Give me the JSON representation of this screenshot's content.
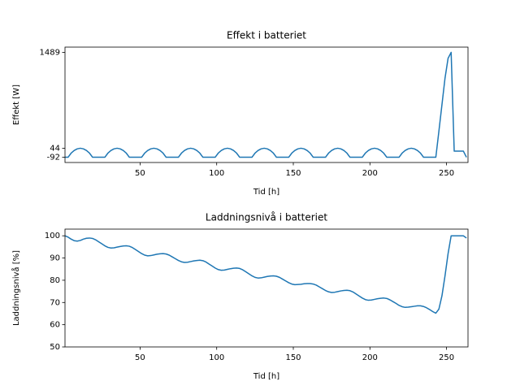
{
  "chart_data": [
    {
      "type": "line",
      "title": "Effekt i batteriet",
      "xlabel": "Tid [h]",
      "ylabel": "Effekt [W]",
      "xlim": [
        1,
        264
      ],
      "xticks": [
        50,
        100,
        150,
        200,
        250
      ],
      "ylim": [
        -171,
        1568
      ],
      "yticks": [
        -92,
        44,
        1489
      ],
      "grid": false,
      "x": [
        1,
        3,
        5,
        7,
        9,
        11,
        13,
        15,
        17,
        19,
        21,
        23,
        25,
        27,
        29,
        31,
        33,
        35,
        37,
        39,
        41,
        43,
        45,
        47,
        49,
        51,
        53,
        55,
        57,
        59,
        61,
        63,
        65,
        67,
        69,
        71,
        73,
        75,
        77,
        79,
        81,
        83,
        85,
        87,
        89,
        91,
        93,
        95,
        97,
        99,
        101,
        103,
        105,
        107,
        109,
        111,
        113,
        115,
        117,
        119,
        121,
        123,
        125,
        127,
        129,
        131,
        133,
        135,
        137,
        139,
        141,
        143,
        145,
        147,
        149,
        151,
        153,
        155,
        157,
        159,
        161,
        163,
        165,
        167,
        169,
        171,
        173,
        175,
        177,
        179,
        181,
        183,
        185,
        187,
        189,
        191,
        193,
        195,
        197,
        199,
        201,
        203,
        205,
        207,
        209,
        211,
        213,
        215,
        217,
        219,
        221,
        223,
        225,
        227,
        229,
        231,
        233,
        235,
        237,
        239,
        241,
        243,
        245,
        247,
        249,
        251,
        253,
        255,
        257,
        259,
        261,
        263
      ],
      "series": [
        {
          "name": "Effekt",
          "color": "#1f77b4",
          "values": [
            -92,
            -92,
            -30,
            10,
            35,
            44,
            35,
            10,
            -30,
            -92,
            -92,
            -92,
            -92,
            -92,
            -30,
            10,
            35,
            44,
            35,
            10,
            -30,
            -92,
            -92,
            -92,
            -92,
            -92,
            -30,
            10,
            35,
            44,
            35,
            10,
            -30,
            -92,
            -92,
            -92,
            -92,
            -92,
            -30,
            10,
            35,
            44,
            35,
            10,
            -30,
            -92,
            -92,
            -92,
            -92,
            -92,
            -30,
            10,
            35,
            44,
            35,
            10,
            -30,
            -92,
            -92,
            -92,
            -92,
            -92,
            -30,
            10,
            35,
            44,
            35,
            10,
            -30,
            -92,
            -92,
            -92,
            -92,
            -92,
            -30,
            10,
            35,
            44,
            35,
            10,
            -30,
            -92,
            -92,
            -92,
            -92,
            -92,
            -30,
            10,
            35,
            44,
            35,
            10,
            -30,
            -92,
            -92,
            -92,
            -92,
            -92,
            -30,
            10,
            35,
            44,
            35,
            10,
            -30,
            -92,
            -92,
            -92,
            -92,
            -92,
            -30,
            10,
            35,
            44,
            35,
            10,
            -30,
            -92,
            -92,
            -92,
            -92,
            -92,
            300,
            700,
            1100,
            1400,
            1489,
            0,
            0,
            0,
            0,
            -92
          ]
        }
      ]
    },
    {
      "type": "line",
      "title": "Laddningsnivå i batteriet",
      "xlabel": "Tid [h]",
      "ylabel": "Laddningsnivå [%]",
      "xlim": [
        1,
        264
      ],
      "xticks": [
        50,
        100,
        150,
        200,
        250
      ],
      "ylim": [
        50,
        103
      ],
      "yticks": [
        50,
        60,
        70,
        80,
        90,
        100
      ],
      "grid": false,
      "x": [
        1,
        3,
        5,
        7,
        9,
        11,
        13,
        15,
        17,
        19,
        21,
        23,
        25,
        27,
        29,
        31,
        33,
        35,
        37,
        39,
        41,
        43,
        45,
        47,
        49,
        51,
        53,
        55,
        57,
        59,
        61,
        63,
        65,
        67,
        69,
        71,
        73,
        75,
        77,
        79,
        81,
        83,
        85,
        87,
        89,
        91,
        93,
        95,
        97,
        99,
        101,
        103,
        105,
        107,
        109,
        111,
        113,
        115,
        117,
        119,
        121,
        123,
        125,
        127,
        129,
        131,
        133,
        135,
        137,
        139,
        141,
        143,
        145,
        147,
        149,
        151,
        153,
        155,
        157,
        159,
        161,
        163,
        165,
        167,
        169,
        171,
        173,
        175,
        177,
        179,
        181,
        183,
        185,
        187,
        189,
        191,
        193,
        195,
        197,
        199,
        201,
        203,
        205,
        207,
        209,
        211,
        213,
        215,
        217,
        219,
        221,
        223,
        225,
        227,
        229,
        231,
        233,
        235,
        237,
        239,
        241,
        243,
        245,
        247,
        249,
        251,
        253,
        255,
        257,
        259,
        261,
        263
      ],
      "series": [
        {
          "name": "Laddningsnivå",
          "color": "#1f77b4",
          "values": [
            100,
            99.4,
            98.5,
            97.8,
            97.6,
            97.9,
            98.5,
            98.9,
            99,
            98.8,
            98.2,
            97.3,
            96.4,
            95.5,
            94.8,
            94.5,
            94.6,
            94.9,
            95.2,
            95.4,
            95.5,
            95.3,
            94.7,
            93.8,
            92.9,
            92.0,
            91.3,
            91,
            91.1,
            91.4,
            91.7,
            91.9,
            92,
            91.8,
            91.3,
            90.5,
            89.7,
            88.9,
            88.3,
            88,
            88.1,
            88.4,
            88.7,
            88.9,
            89,
            88.8,
            88.2,
            87.3,
            86.4,
            85.5,
            84.8,
            84.5,
            84.6,
            84.9,
            85.2,
            85.4,
            85.5,
            85.3,
            84.7,
            83.8,
            82.9,
            82.0,
            81.3,
            81,
            81.1,
            81.4,
            81.7,
            81.9,
            82,
            81.8,
            81.3,
            80.5,
            79.7,
            78.9,
            78.3,
            78,
            78.1,
            78.2,
            78.4,
            78.5,
            78.5,
            78.3,
            77.8,
            77.0,
            76.2,
            75.4,
            74.8,
            74.5,
            74.6,
            74.9,
            75.2,
            75.4,
            75.5,
            75.3,
            74.7,
            73.8,
            72.9,
            72.0,
            71.3,
            71,
            71.1,
            71.4,
            71.7,
            71.9,
            72,
            71.8,
            71.2,
            70.4,
            69.6,
            68.7,
            68.1,
            67.8,
            67.9,
            68.1,
            68.3,
            68.5,
            68.5,
            68.2,
            67.6,
            66.8,
            65.9,
            65.2,
            67,
            73,
            82,
            92,
            100,
            100,
            100,
            100,
            100,
            99
          ]
        }
      ]
    }
  ]
}
